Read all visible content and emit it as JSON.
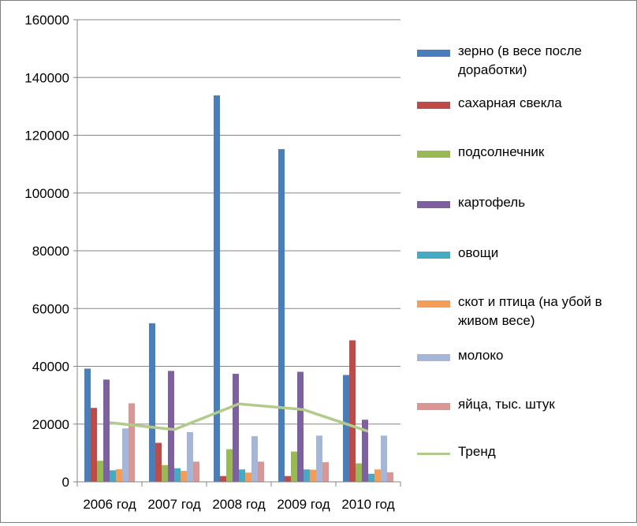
{
  "chart_data": {
    "type": "bar",
    "categories": [
      "2006 год",
      "2007 год",
      "2008 год",
      "2009 год",
      "2010 год"
    ],
    "ylim": [
      0,
      160000
    ],
    "yticks": [
      "0",
      "20000",
      "40000",
      "60000",
      "80000",
      "100000",
      "120000",
      "140000",
      "160000"
    ],
    "grid": true,
    "legend_position": "right",
    "series": [
      {
        "name": " зерно (в весе после доработки)",
        "color": "#4a7ebb",
        "values": [
          39200,
          54900,
          133800,
          115200,
          37000
        ]
      },
      {
        "name": "сахарная свекла",
        "color": "#be4b48",
        "values": [
          25600,
          13500,
          2000,
          2000,
          49000
        ]
      },
      {
        "name": "подсолнечник",
        "color": "#98b954",
        "values": [
          7300,
          5800,
          11300,
          10500,
          6400
        ]
      },
      {
        "name": "картофель",
        "color": "#7d60a0",
        "values": [
          35400,
          38400,
          37400,
          38100,
          21500
        ]
      },
      {
        "name": "овощи",
        "color": "#46aac5",
        "values": [
          4000,
          4700,
          4300,
          4300,
          2800
        ]
      },
      {
        "name": "скот и птица (на убой в живом весе)",
        "color": "#f59d56",
        "values": [
          4400,
          3800,
          3200,
          4200,
          4300
        ]
      },
      {
        "name": "молоко",
        "color": "#a5b6d8",
        "values": [
          18500,
          17200,
          15800,
          16000,
          16000
        ]
      },
      {
        "name": "яйца, тыс. штук",
        "color": "#d99694",
        "values": [
          27200,
          7000,
          7000,
          6800,
          3300
        ]
      }
    ],
    "trend": {
      "name": "Тренд",
      "color": "#b3cb8a",
      "values": [
        20500,
        18100,
        27000,
        25000,
        17500
      ]
    }
  }
}
